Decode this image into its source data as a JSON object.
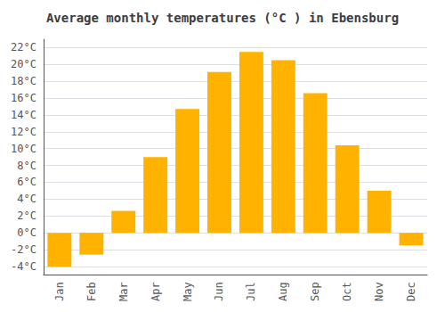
{
  "chart_data": {
    "type": "bar",
    "title": "Average monthly temperatures (°C ) in Ebensburg",
    "categories": [
      "Jan",
      "Feb",
      "Mar",
      "Apr",
      "May",
      "Jun",
      "Jul",
      "Aug",
      "Sep",
      "Oct",
      "Nov",
      "Dec"
    ],
    "values": [
      -4.0,
      -2.6,
      2.6,
      9.0,
      14.7,
      19.1,
      21.5,
      20.5,
      16.6,
      10.4,
      5.0,
      -1.5
    ],
    "color": "#FFB300",
    "ylim": [
      -5,
      23
    ],
    "yticks": [
      {
        "value": -4,
        "label": "-4°C"
      },
      {
        "value": -2,
        "label": "-2°C"
      },
      {
        "value": 0,
        "label": "0°C"
      },
      {
        "value": 2,
        "label": "2°C"
      },
      {
        "value": 4,
        "label": "4°C"
      },
      {
        "value": 6,
        "label": "6°C"
      },
      {
        "value": 8,
        "label": "8°C"
      },
      {
        "value": 10,
        "label": "10°C"
      },
      {
        "value": 12,
        "label": "12°C"
      },
      {
        "value": 14,
        "label": "14°C"
      },
      {
        "value": 16,
        "label": "16°C"
      },
      {
        "value": 18,
        "label": "18°C"
      },
      {
        "value": 20,
        "label": "20°C"
      },
      {
        "value": 22,
        "label": "22°C"
      }
    ],
    "grid": true
  }
}
